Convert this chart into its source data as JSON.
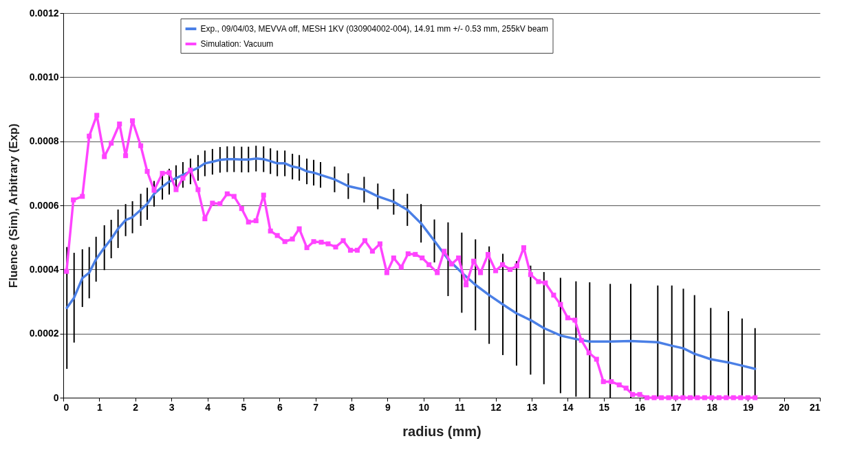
{
  "chart_data": {
    "type": "line",
    "xlabel": "radius (mm)",
    "ylabel": "Fluence (Sim), Arbitrary (Exp)",
    "xlim": [
      0,
      21
    ],
    "xticks": [
      0,
      1,
      2,
      3,
      4,
      5,
      6,
      7,
      8,
      9,
      10,
      11,
      12,
      13,
      14,
      15,
      16,
      17,
      18,
      19,
      20,
      21
    ],
    "ylim": [
      0,
      0.0012
    ],
    "yticks": [
      0,
      0.0002,
      0.0004,
      0.0006,
      0.0008,
      {
        "value": 0.001,
        "label": "0.0010"
      },
      0.0012
    ],
    "grid": "y",
    "legend": "top",
    "series": [
      {
        "name": "Exp., 09/04/03, MEVVA off, MESH 1KV (030904002-004), 14.91 mm +/- 0.53 mm, 255kV beam",
        "color": "#4a7fe6",
        "marker": "none",
        "x": [
          0.1,
          0.3,
          0.53,
          0.72,
          0.91,
          1.14,
          1.33,
          1.52,
          1.73,
          1.92,
          2.15,
          2.33,
          2.52,
          2.75,
          2.94,
          3.13,
          3.32,
          3.53,
          3.74,
          3.93,
          4.14,
          4.35,
          4.55,
          4.74,
          4.95,
          5.14,
          5.35,
          5.56,
          5.75,
          5.94,
          6.15,
          6.36,
          6.55,
          6.76,
          6.95,
          7.14,
          7.53,
          7.91,
          8.35,
          8.73,
          9.17,
          9.55,
          9.93,
          10.3,
          10.68,
          11.06,
          11.44,
          11.82,
          12.2,
          12.58,
          12.97,
          13.34,
          13.8,
          14.23,
          14.61,
          15.18,
          15.75,
          16.5,
          16.89,
          17.21,
          17.52,
          17.97,
          18.46,
          18.84,
          19.2
        ],
        "values": [
          0.00028,
          0.000312,
          0.000373,
          0.00039,
          0.000432,
          0.000468,
          0.000495,
          0.000527,
          0.000554,
          0.000563,
          0.000586,
          0.000605,
          0.000636,
          0.000658,
          0.000674,
          0.000685,
          0.000695,
          0.000706,
          0.000717,
          0.000731,
          0.000736,
          0.000742,
          0.000744,
          0.000744,
          0.000743,
          0.000743,
          0.000746,
          0.000744,
          0.000738,
          0.000731,
          0.000731,
          0.000721,
          0.000717,
          0.000706,
          0.000702,
          0.000695,
          0.000681,
          0.00066,
          0.000649,
          0.000628,
          0.000611,
          0.000586,
          0.000544,
          0.000489,
          0.000432,
          0.00039,
          0.000352,
          0.00032,
          0.000291,
          0.000263,
          0.000242,
          0.000217,
          0.000194,
          0.000183,
          0.000175,
          0.000175,
          0.000177,
          0.000173,
          0.000162,
          0.000154,
          0.000137,
          0.00012,
          0.00011,
          0.0001,
          9e-05
        ],
        "errors": [
          0.00019,
          0.00014,
          9e-05,
          8e-05,
          7e-05,
          7e-05,
          6e-05,
          6e-05,
          5e-05,
          5e-05,
          5e-05,
          5e-05,
          4e-05,
          4e-05,
          4e-05,
          4e-05,
          4e-05,
          4e-05,
          4e-05,
          4e-05,
          4e-05,
          4e-05,
          4e-05,
          4e-05,
          4e-05,
          4e-05,
          4e-05,
          4e-05,
          4e-05,
          4e-05,
          4e-05,
          4e-05,
          4e-05,
          4e-05,
          4e-05,
          4e-05,
          4e-05,
          4e-05,
          4e-05,
          4e-05,
          4e-05,
          5e-05,
          6e-05,
          6.7e-05,
          0.000115,
          0.000125,
          0.000142,
          0.000152,
          0.000158,
          0.000163,
          0.00017,
          0.000175,
          0.00018,
          0.00018,
          [
            0,
            0.00036
          ],
          [
            0,
            0.000355
          ],
          [
            0,
            0.000355
          ],
          [
            0,
            0.00035
          ],
          [
            0,
            0.00035
          ],
          [
            0,
            0.00034
          ],
          [
            0,
            0.00032
          ],
          [
            0,
            0.00028
          ],
          [
            0,
            0.00027
          ],
          [
            0,
            0.000247
          ],
          [
            0,
            0.000217
          ]
        ]
      },
      {
        "name": "Simulation: Vacuum",
        "color": "#ff44ff",
        "marker": "square",
        "x": [
          0.09,
          0.28,
          0.53,
          0.72,
          0.93,
          1.14,
          1.33,
          1.56,
          1.73,
          1.92,
          2.15,
          2.33,
          2.52,
          2.75,
          2.94,
          3.13,
          3.32,
          3.53,
          3.74,
          3.93,
          4.14,
          4.35,
          4.55,
          4.74,
          4.95,
          5.14,
          5.35,
          5.56,
          5.75,
          5.94,
          6.15,
          6.36,
          6.55,
          6.76,
          6.95,
          7.16,
          7.35,
          7.56,
          7.77,
          7.97,
          8.16,
          8.37,
          8.58,
          8.79,
          8.98,
          9.17,
          9.38,
          9.57,
          9.77,
          9.96,
          10.15,
          10.38,
          10.57,
          10.78,
          10.97,
          11.18,
          11.39,
          11.58,
          11.79,
          12.0,
          12.19,
          12.4,
          12.59,
          12.78,
          12.97,
          13.19,
          13.38,
          13.61,
          13.8,
          14.0,
          14.2,
          14.38,
          14.59,
          14.8,
          14.99,
          15.21,
          15.43,
          15.62,
          15.8,
          16.0,
          16.2,
          16.4,
          16.6,
          16.8,
          17.0,
          17.2,
          17.4,
          17.6,
          17.8,
          18.0,
          18.2,
          18.4,
          18.6,
          18.8,
          19.0,
          19.2
        ],
        "values": [
          0.000394,
          0.000617,
          0.000628,
          0.000816,
          0.000881,
          0.000752,
          0.000794,
          0.000854,
          0.000755,
          0.000864,
          0.000786,
          0.000706,
          0.000647,
          0.0007,
          0.000702,
          0.000649,
          0.000685,
          0.00071,
          0.000649,
          0.000558,
          0.000607,
          0.000605,
          0.000636,
          0.000628,
          0.00059,
          0.000548,
          0.000552,
          0.000632,
          0.00052,
          0.000506,
          0.000487,
          0.000495,
          0.000527,
          0.000468,
          0.000487,
          0.000485,
          0.00048,
          0.00047,
          0.00049,
          0.00046,
          0.00046,
          0.00049,
          0.000457,
          0.00048,
          0.00039,
          0.000436,
          0.000407,
          0.000449,
          0.000447,
          0.000436,
          0.000415,
          0.00039,
          0.000457,
          0.000417,
          0.000436,
          0.000352,
          0.000426,
          0.00039,
          0.000447,
          0.000396,
          0.000415,
          0.0004,
          0.000411,
          0.000468,
          0.000384,
          0.000362,
          0.000358,
          0.00032,
          0.000291,
          0.000249,
          0.000242,
          0.000179,
          0.00014,
          0.00012,
          5e-05,
          5e-05,
          4e-05,
          3e-05,
          1e-05,
          1e-05,
          0,
          0,
          0,
          0,
          0,
          0,
          0,
          0,
          0,
          0,
          0,
          0,
          0,
          0,
          0,
          0
        ]
      }
    ]
  }
}
